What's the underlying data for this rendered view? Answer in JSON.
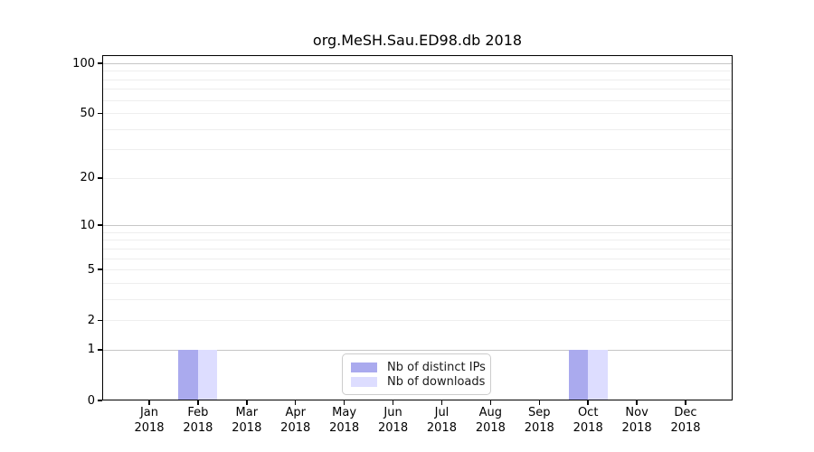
{
  "chart_data": {
    "type": "bar",
    "title": "org.MeSH.Sau.ED98.db 2018",
    "x_tick_months": [
      "Jan",
      "Feb",
      "Mar",
      "Apr",
      "May",
      "Jun",
      "Jul",
      "Aug",
      "Sep",
      "Oct",
      "Nov",
      "Dec"
    ],
    "x_tick_year": "2018",
    "categories": [
      "Jan 2018",
      "Feb 2018",
      "Mar 2018",
      "Apr 2018",
      "May 2018",
      "Jun 2018",
      "Jul 2018",
      "Aug 2018",
      "Sep 2018",
      "Oct 2018",
      "Nov 2018",
      "Dec 2018"
    ],
    "series": [
      {
        "name": "Nb of distinct IPs",
        "color": "#aaaaee",
        "values": [
          0,
          1,
          0,
          0,
          0,
          0,
          0,
          0,
          0,
          1,
          0,
          0
        ]
      },
      {
        "name": "Nb of downloads",
        "color": "#ddddff",
        "values": [
          0,
          1,
          0,
          0,
          0,
          0,
          0,
          0,
          0,
          1,
          0,
          0
        ]
      }
    ],
    "y_scale": "log1p",
    "ylim": [
      0,
      100
    ],
    "y_tick_values": [
      0,
      1,
      2,
      5,
      10,
      20,
      50,
      100
    ],
    "y_tick_labels": [
      "0",
      "1",
      "2",
      "5",
      "10",
      "20",
      "50",
      "100"
    ],
    "grid": {
      "major_values": [
        1,
        10,
        100
      ],
      "minor_values": [
        2,
        3,
        4,
        5,
        6,
        7,
        8,
        9,
        20,
        30,
        40,
        50,
        60,
        70,
        80,
        90
      ]
    },
    "legend_position": "lower-center",
    "legend_entries": [
      "Nb of distinct IPs",
      "Nb of downloads"
    ]
  },
  "colors": {
    "bar_distinct_ips": "#aaaaee",
    "bar_downloads": "#ddddff",
    "major_grid": "#c6c6c6",
    "minor_grid": "#eeeeee",
    "spine": "#000000",
    "text": "#000000",
    "legend_border": "#cccccc",
    "background": "#ffffff"
  }
}
